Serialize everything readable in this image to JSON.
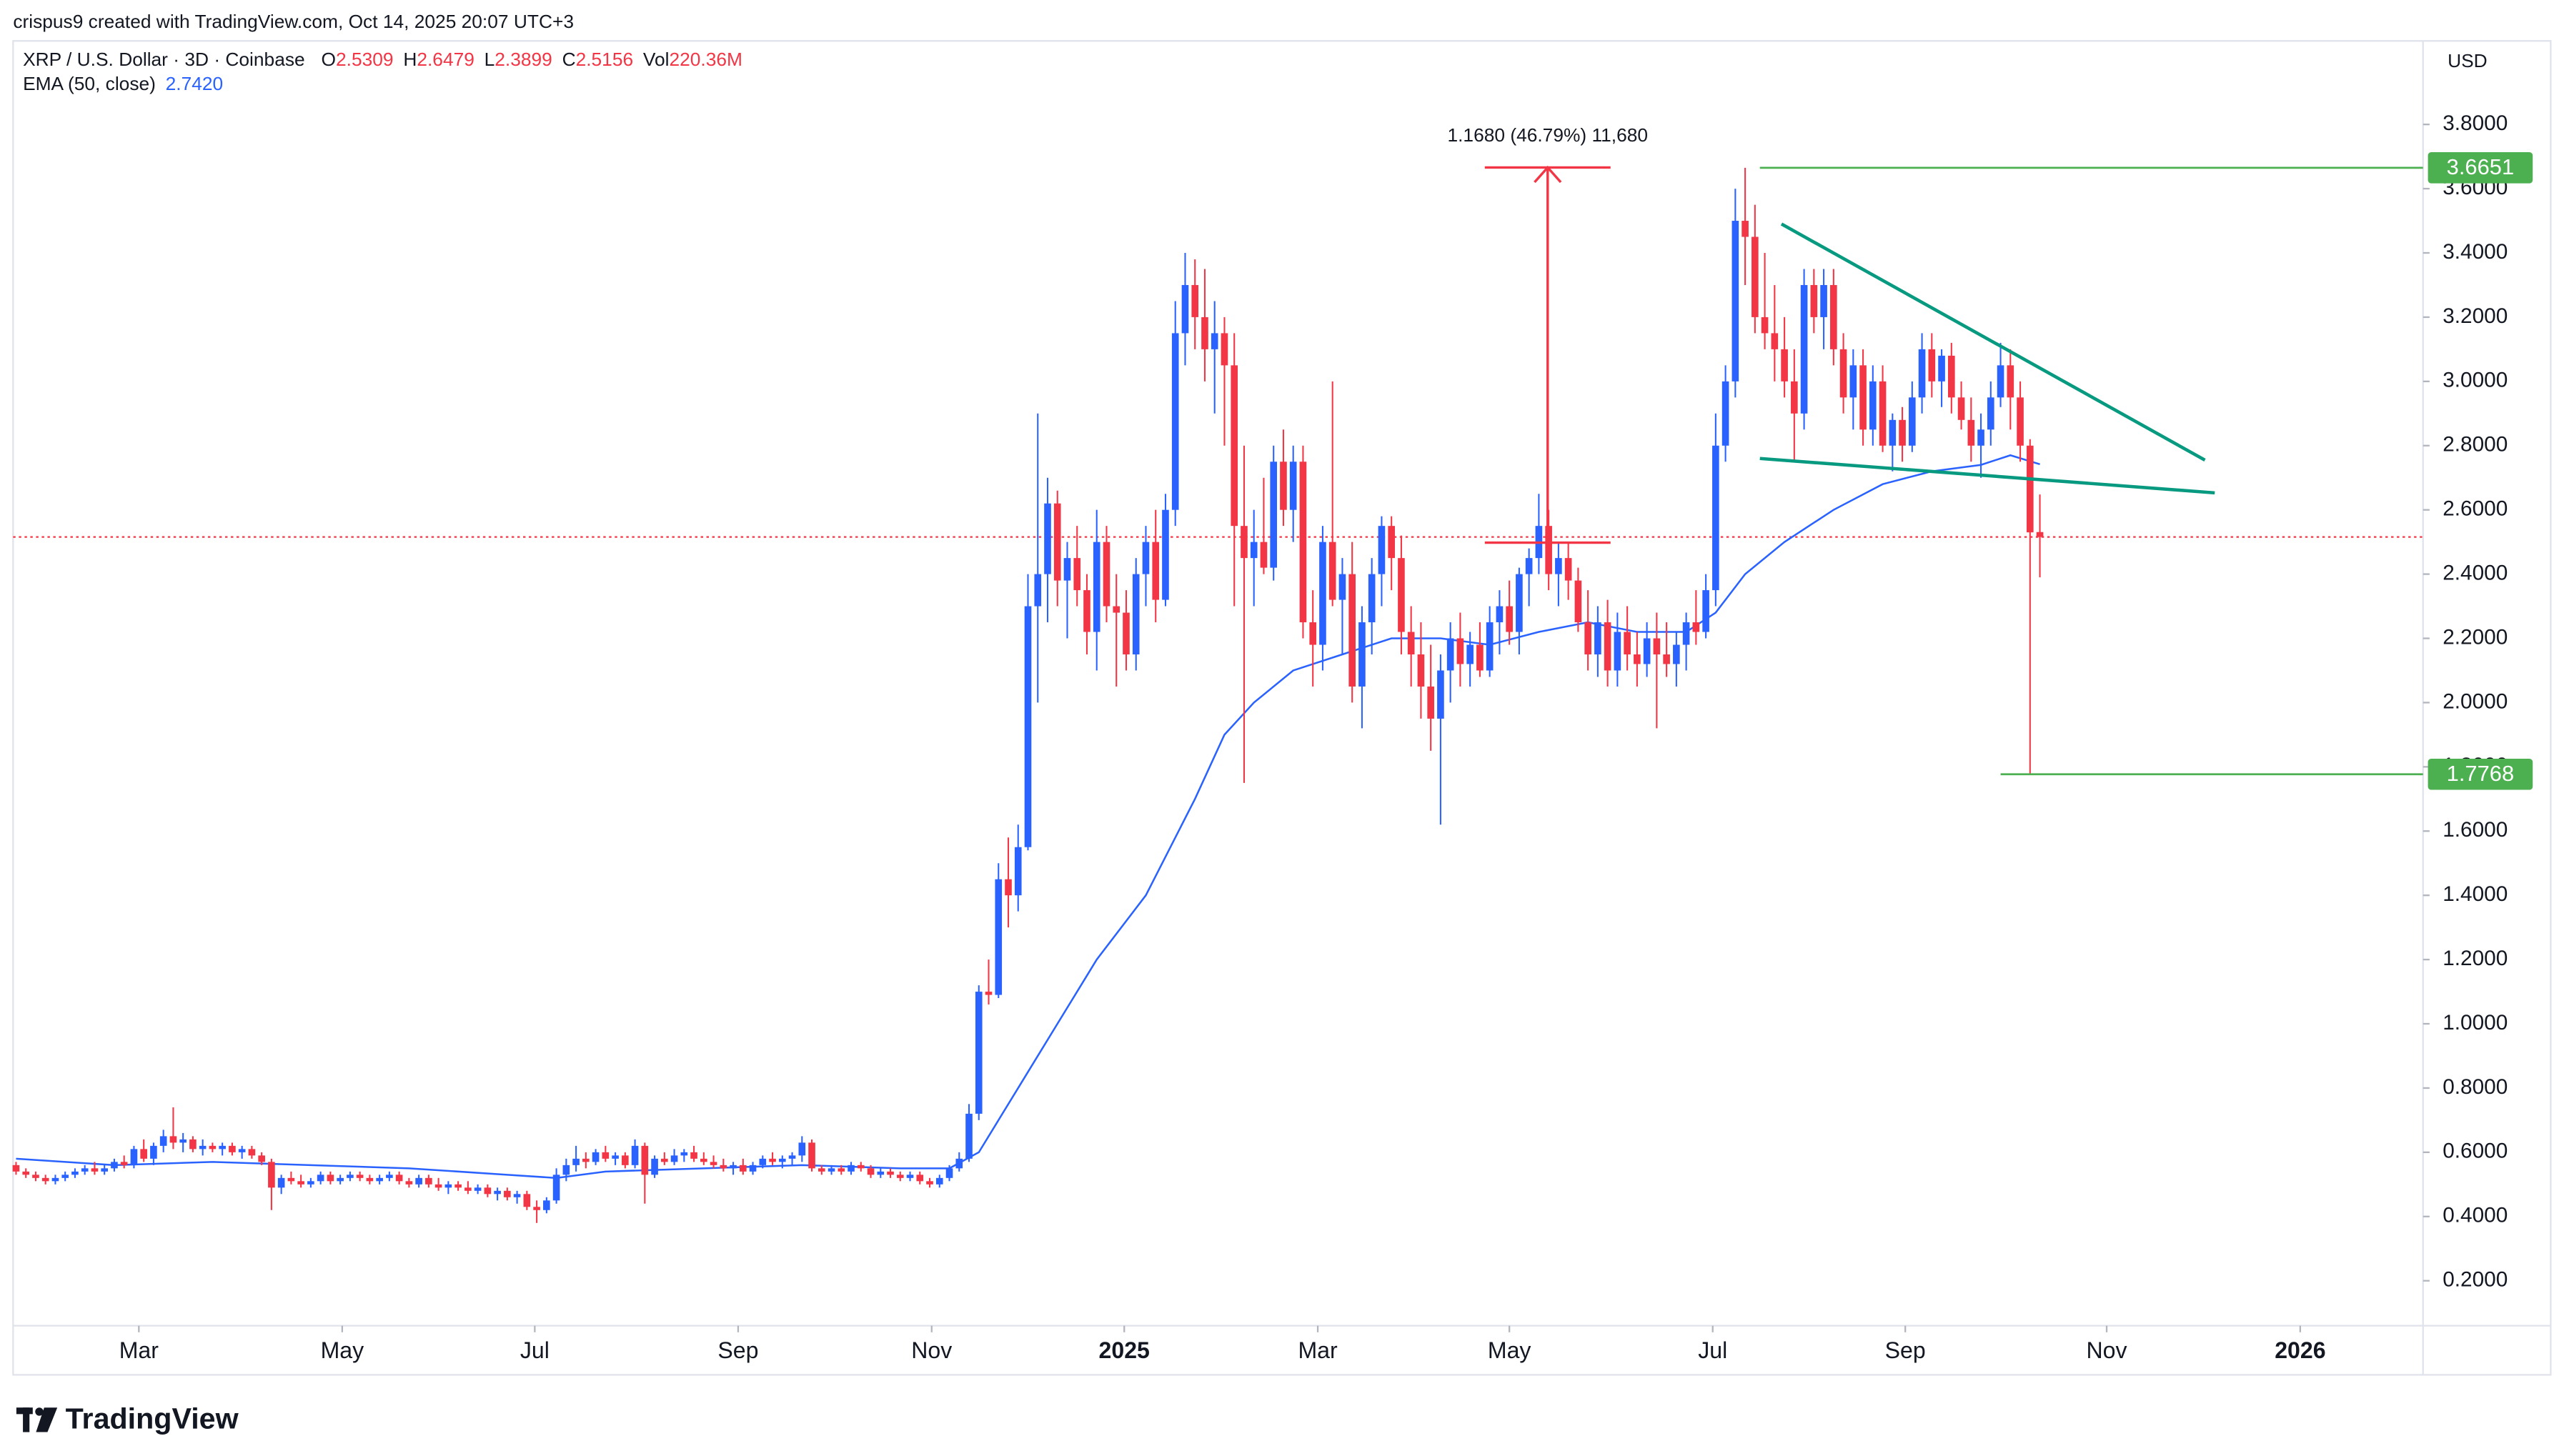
{
  "header": {
    "credit": "crispus9 created with TradingView.com, Oct 14, 2025 20:07 UTC+3",
    "logo": "TradingView"
  },
  "chart_data": {
    "type": "candlestick",
    "title": "XRP / U.S. Dollar · 3D · Coinbase",
    "ohlc_legend": [
      {
        "label": "O",
        "value": "2.5309"
      },
      {
        "label": "H",
        "value": "2.6479"
      },
      {
        "label": "L",
        "value": "2.3899"
      },
      {
        "label": "C",
        "value": "2.5156"
      },
      {
        "label": "Vol",
        "value": "220.36M"
      }
    ],
    "currency": "USD",
    "up_color": "#2962ff",
    "down_color": "#f23645",
    "xlim": [
      -0.3,
      245
    ],
    "xticks": [
      {
        "value": 12.5,
        "label": "Mar"
      },
      {
        "value": 33.2,
        "label": "May"
      },
      {
        "value": 52.8,
        "label": "Jul"
      },
      {
        "value": 73.5,
        "label": "Sep"
      },
      {
        "value": 93.2,
        "label": "Nov"
      },
      {
        "value": 112.8,
        "label": "2025"
      },
      {
        "value": 132.5,
        "label": "Mar"
      },
      {
        "value": 152,
        "label": "May"
      },
      {
        "value": 172.7,
        "label": "Jul"
      },
      {
        "value": 192.3,
        "label": "Sep"
      },
      {
        "value": 212.8,
        "label": "Nov"
      },
      {
        "value": 232.5,
        "label": "2026"
      }
    ],
    "ylim": [
      0.06,
      4.06
    ],
    "yticks": [
      {
        "value": 0.2,
        "label": "0.2000"
      },
      {
        "value": 0.4,
        "label": "0.4000"
      },
      {
        "value": 0.6,
        "label": "0.6000"
      },
      {
        "value": 0.8,
        "label": "0.8000"
      },
      {
        "value": 1.0,
        "label": "1.0000"
      },
      {
        "value": 1.2,
        "label": "1.2000"
      },
      {
        "value": 1.4,
        "label": "1.4000"
      },
      {
        "value": 1.6,
        "label": "1.6000"
      },
      {
        "value": 1.8,
        "label": "1.8000"
      },
      {
        "value": 2.0,
        "label": "2.0000"
      },
      {
        "value": 2.2,
        "label": "2.2000"
      },
      {
        "value": 2.4,
        "label": "2.4000"
      },
      {
        "value": 2.6,
        "label": "2.6000"
      },
      {
        "value": 2.8,
        "label": "2.8000"
      },
      {
        "value": 3.0,
        "label": "3.0000"
      },
      {
        "value": 3.2,
        "label": "3.2000"
      },
      {
        "value": 3.4,
        "label": "3.4000"
      },
      {
        "value": 3.6,
        "label": "3.6000"
      },
      {
        "value": 3.8,
        "label": "3.8000"
      }
    ],
    "grid": false,
    "ohlc": [
      [
        0.56,
        0.57,
        0.53,
        0.54
      ],
      [
        0.54,
        0.55,
        0.52,
        0.53
      ],
      [
        0.53,
        0.54,
        0.51,
        0.52
      ],
      [
        0.52,
        0.53,
        0.5,
        0.51
      ],
      [
        0.51,
        0.53,
        0.5,
        0.52
      ],
      [
        0.52,
        0.54,
        0.51,
        0.53
      ],
      [
        0.53,
        0.55,
        0.52,
        0.54
      ],
      [
        0.54,
        0.56,
        0.53,
        0.55
      ],
      [
        0.55,
        0.57,
        0.53,
        0.54
      ],
      [
        0.54,
        0.56,
        0.53,
        0.55
      ],
      [
        0.55,
        0.58,
        0.54,
        0.57
      ],
      [
        0.57,
        0.59,
        0.55,
        0.56
      ],
      [
        0.56,
        0.62,
        0.55,
        0.61
      ],
      [
        0.61,
        0.64,
        0.57,
        0.58
      ],
      [
        0.58,
        0.63,
        0.56,
        0.62
      ],
      [
        0.62,
        0.67,
        0.6,
        0.65
      ],
      [
        0.65,
        0.74,
        0.61,
        0.63
      ],
      [
        0.63,
        0.66,
        0.6,
        0.64
      ],
      [
        0.64,
        0.65,
        0.6,
        0.61
      ],
      [
        0.61,
        0.64,
        0.59,
        0.62
      ],
      [
        0.62,
        0.63,
        0.6,
        0.61
      ],
      [
        0.61,
        0.63,
        0.59,
        0.62
      ],
      [
        0.62,
        0.63,
        0.59,
        0.6
      ],
      [
        0.6,
        0.62,
        0.58,
        0.61
      ],
      [
        0.61,
        0.62,
        0.58,
        0.59
      ],
      [
        0.59,
        0.6,
        0.56,
        0.57
      ],
      [
        0.57,
        0.58,
        0.42,
        0.49
      ],
      [
        0.49,
        0.53,
        0.47,
        0.52
      ],
      [
        0.52,
        0.54,
        0.5,
        0.51
      ],
      [
        0.51,
        0.53,
        0.49,
        0.5
      ],
      [
        0.5,
        0.52,
        0.49,
        0.51
      ],
      [
        0.51,
        0.54,
        0.5,
        0.53
      ],
      [
        0.53,
        0.54,
        0.5,
        0.51
      ],
      [
        0.51,
        0.53,
        0.5,
        0.52
      ],
      [
        0.52,
        0.54,
        0.51,
        0.53
      ],
      [
        0.53,
        0.54,
        0.51,
        0.52
      ],
      [
        0.52,
        0.53,
        0.5,
        0.51
      ],
      [
        0.51,
        0.53,
        0.5,
        0.52
      ],
      [
        0.52,
        0.54,
        0.51,
        0.53
      ],
      [
        0.53,
        0.54,
        0.5,
        0.51
      ],
      [
        0.51,
        0.52,
        0.49,
        0.5
      ],
      [
        0.5,
        0.53,
        0.49,
        0.52
      ],
      [
        0.52,
        0.53,
        0.49,
        0.5
      ],
      [
        0.5,
        0.52,
        0.48,
        0.49
      ],
      [
        0.49,
        0.51,
        0.47,
        0.5
      ],
      [
        0.5,
        0.51,
        0.48,
        0.49
      ],
      [
        0.49,
        0.51,
        0.47,
        0.48
      ],
      [
        0.48,
        0.5,
        0.47,
        0.49
      ],
      [
        0.49,
        0.5,
        0.46,
        0.47
      ],
      [
        0.47,
        0.49,
        0.45,
        0.48
      ],
      [
        0.48,
        0.49,
        0.45,
        0.46
      ],
      [
        0.46,
        0.48,
        0.44,
        0.47
      ],
      [
        0.47,
        0.48,
        0.42,
        0.43
      ],
      [
        0.43,
        0.45,
        0.38,
        0.42
      ],
      [
        0.42,
        0.46,
        0.41,
        0.45
      ],
      [
        0.45,
        0.55,
        0.44,
        0.53
      ],
      [
        0.53,
        0.58,
        0.51,
        0.56
      ],
      [
        0.56,
        0.62,
        0.54,
        0.58
      ],
      [
        0.58,
        0.6,
        0.55,
        0.57
      ],
      [
        0.57,
        0.61,
        0.56,
        0.6
      ],
      [
        0.6,
        0.62,
        0.57,
        0.58
      ],
      [
        0.58,
        0.6,
        0.56,
        0.59
      ],
      [
        0.59,
        0.6,
        0.55,
        0.56
      ],
      [
        0.56,
        0.64,
        0.55,
        0.62
      ],
      [
        0.62,
        0.63,
        0.44,
        0.53
      ],
      [
        0.53,
        0.59,
        0.52,
        0.58
      ],
      [
        0.58,
        0.6,
        0.56,
        0.57
      ],
      [
        0.57,
        0.61,
        0.56,
        0.59
      ],
      [
        0.59,
        0.61,
        0.57,
        0.6
      ],
      [
        0.6,
        0.62,
        0.57,
        0.58
      ],
      [
        0.58,
        0.6,
        0.56,
        0.57
      ],
      [
        0.57,
        0.59,
        0.55,
        0.56
      ],
      [
        0.56,
        0.58,
        0.54,
        0.55
      ],
      [
        0.55,
        0.57,
        0.53,
        0.56
      ],
      [
        0.56,
        0.58,
        0.53,
        0.54
      ],
      [
        0.54,
        0.57,
        0.53,
        0.56
      ],
      [
        0.56,
        0.59,
        0.55,
        0.58
      ],
      [
        0.58,
        0.6,
        0.56,
        0.57
      ],
      [
        0.57,
        0.59,
        0.55,
        0.58
      ],
      [
        0.58,
        0.6,
        0.56,
        0.59
      ],
      [
        0.59,
        0.65,
        0.57,
        0.63
      ],
      [
        0.63,
        0.64,
        0.54,
        0.55
      ],
      [
        0.55,
        0.56,
        0.53,
        0.54
      ],
      [
        0.54,
        0.56,
        0.53,
        0.55
      ],
      [
        0.55,
        0.56,
        0.53,
        0.54
      ],
      [
        0.54,
        0.57,
        0.53,
        0.56
      ],
      [
        0.56,
        0.57,
        0.54,
        0.55
      ],
      [
        0.55,
        0.56,
        0.52,
        0.53
      ],
      [
        0.53,
        0.55,
        0.52,
        0.54
      ],
      [
        0.54,
        0.55,
        0.52,
        0.53
      ],
      [
        0.53,
        0.54,
        0.51,
        0.52
      ],
      [
        0.52,
        0.54,
        0.51,
        0.53
      ],
      [
        0.53,
        0.54,
        0.5,
        0.51
      ],
      [
        0.51,
        0.52,
        0.49,
        0.5
      ],
      [
        0.5,
        0.53,
        0.49,
        0.52
      ],
      [
        0.52,
        0.56,
        0.51,
        0.55
      ],
      [
        0.55,
        0.6,
        0.54,
        0.58
      ],
      [
        0.58,
        0.75,
        0.57,
        0.72
      ],
      [
        0.72,
        1.12,
        0.7,
        1.1
      ],
      [
        1.1,
        1.2,
        1.06,
        1.09
      ],
      [
        1.09,
        1.5,
        1.08,
        1.45
      ],
      [
        1.45,
        1.58,
        1.3,
        1.4
      ],
      [
        1.4,
        1.62,
        1.35,
        1.55
      ],
      [
        1.55,
        2.4,
        1.54,
        2.3
      ],
      [
        2.3,
        2.9,
        2.0,
        2.4
      ],
      [
        2.4,
        2.7,
        2.25,
        2.62
      ],
      [
        2.62,
        2.66,
        2.3,
        2.38
      ],
      [
        2.38,
        2.5,
        2.2,
        2.45
      ],
      [
        2.45,
        2.55,
        2.3,
        2.35
      ],
      [
        2.35,
        2.4,
        2.15,
        2.22
      ],
      [
        2.22,
        2.6,
        2.1,
        2.5
      ],
      [
        2.5,
        2.55,
        2.25,
        2.3
      ],
      [
        2.3,
        2.4,
        2.05,
        2.28
      ],
      [
        2.28,
        2.35,
        2.1,
        2.15
      ],
      [
        2.15,
        2.45,
        2.1,
        2.4
      ],
      [
        2.4,
        2.55,
        2.3,
        2.5
      ],
      [
        2.5,
        2.6,
        2.25,
        2.32
      ],
      [
        2.32,
        2.65,
        2.3,
        2.6
      ],
      [
        2.6,
        3.25,
        2.55,
        3.15
      ],
      [
        3.15,
        3.4,
        3.05,
        3.3
      ],
      [
        3.3,
        3.38,
        3.1,
        3.2
      ],
      [
        3.2,
        3.35,
        3.0,
        3.1
      ],
      [
        3.1,
        3.25,
        2.9,
        3.15
      ],
      [
        3.15,
        3.2,
        2.8,
        3.05
      ],
      [
        3.05,
        3.15,
        2.3,
        2.55
      ],
      [
        2.55,
        2.8,
        1.75,
        2.45
      ],
      [
        2.45,
        2.6,
        2.3,
        2.5
      ],
      [
        2.5,
        2.7,
        2.4,
        2.42
      ],
      [
        2.42,
        2.8,
        2.38,
        2.75
      ],
      [
        2.75,
        2.85,
        2.55,
        2.6
      ],
      [
        2.6,
        2.8,
        2.5,
        2.75
      ],
      [
        2.75,
        2.8,
        2.2,
        2.25
      ],
      [
        2.25,
        2.35,
        2.05,
        2.18
      ],
      [
        2.18,
        2.55,
        2.1,
        2.5
      ],
      [
        2.5,
        3.0,
        2.3,
        2.32
      ],
      [
        2.32,
        2.45,
        2.15,
        2.4
      ],
      [
        2.4,
        2.5,
        2.0,
        2.05
      ],
      [
        2.05,
        2.3,
        1.92,
        2.25
      ],
      [
        2.25,
        2.45,
        2.15,
        2.4
      ],
      [
        2.4,
        2.58,
        2.3,
        2.55
      ],
      [
        2.55,
        2.58,
        2.35,
        2.45
      ],
      [
        2.45,
        2.52,
        2.15,
        2.22
      ],
      [
        2.22,
        2.3,
        2.05,
        2.15
      ],
      [
        2.15,
        2.25,
        1.95,
        2.05
      ],
      [
        2.05,
        2.18,
        1.85,
        1.95
      ],
      [
        1.95,
        2.15,
        1.62,
        2.1
      ],
      [
        2.1,
        2.25,
        2.0,
        2.2
      ],
      [
        2.2,
        2.28,
        2.05,
        2.12
      ],
      [
        2.12,
        2.22,
        2.05,
        2.18
      ],
      [
        2.18,
        2.25,
        2.08,
        2.1
      ],
      [
        2.1,
        2.3,
        2.08,
        2.25
      ],
      [
        2.25,
        2.35,
        2.15,
        2.3
      ],
      [
        2.3,
        2.38,
        2.18,
        2.22
      ],
      [
        2.22,
        2.42,
        2.15,
        2.4
      ],
      [
        2.4,
        2.48,
        2.3,
        2.45
      ],
      [
        2.45,
        2.65,
        2.4,
        2.55
      ],
      [
        2.55,
        2.6,
        2.35,
        2.4
      ],
      [
        2.4,
        2.5,
        2.3,
        2.45
      ],
      [
        2.45,
        2.5,
        2.32,
        2.38
      ],
      [
        2.38,
        2.42,
        2.22,
        2.25
      ],
      [
        2.25,
        2.35,
        2.1,
        2.15
      ],
      [
        2.15,
        2.3,
        2.08,
        2.25
      ],
      [
        2.25,
        2.32,
        2.05,
        2.1
      ],
      [
        2.1,
        2.28,
        2.05,
        2.22
      ],
      [
        2.22,
        2.3,
        2.1,
        2.15
      ],
      [
        2.15,
        2.22,
        2.05,
        2.12
      ],
      [
        2.12,
        2.25,
        2.08,
        2.2
      ],
      [
        2.2,
        2.28,
        1.92,
        2.15
      ],
      [
        2.15,
        2.25,
        2.08,
        2.12
      ],
      [
        2.12,
        2.22,
        2.05,
        2.18
      ],
      [
        2.18,
        2.28,
        2.1,
        2.25
      ],
      [
        2.25,
        2.35,
        2.18,
        2.22
      ],
      [
        2.22,
        2.4,
        2.2,
        2.35
      ],
      [
        2.35,
        2.9,
        2.3,
        2.8
      ],
      [
        2.8,
        3.05,
        2.75,
        3.0
      ],
      [
        3.0,
        3.6,
        2.95,
        3.5
      ],
      [
        3.5,
        3.6651,
        3.3,
        3.45
      ],
      [
        3.45,
        3.55,
        3.15,
        3.2
      ],
      [
        3.2,
        3.4,
        3.1,
        3.15
      ],
      [
        3.15,
        3.3,
        3.0,
        3.1
      ],
      [
        3.1,
        3.2,
        2.95,
        3.0
      ],
      [
        3.0,
        3.1,
        2.75,
        2.9
      ],
      [
        2.9,
        3.35,
        2.85,
        3.3
      ],
      [
        3.3,
        3.35,
        3.15,
        3.2
      ],
      [
        3.2,
        3.35,
        3.1,
        3.3
      ],
      [
        3.3,
        3.35,
        3.05,
        3.1
      ],
      [
        3.1,
        3.15,
        2.9,
        2.95
      ],
      [
        2.95,
        3.1,
        2.85,
        3.05
      ],
      [
        3.05,
        3.1,
        2.8,
        2.85
      ],
      [
        2.85,
        3.05,
        2.8,
        3.0
      ],
      [
        3.0,
        3.05,
        2.78,
        2.8
      ],
      [
        2.8,
        2.9,
        2.72,
        2.88
      ],
      [
        2.88,
        2.92,
        2.75,
        2.8
      ],
      [
        2.8,
        3.0,
        2.78,
        2.95
      ],
      [
        2.95,
        3.15,
        2.9,
        3.1
      ],
      [
        3.1,
        3.15,
        2.95,
        3.0
      ],
      [
        3.0,
        3.1,
        2.92,
        3.08
      ],
      [
        3.08,
        3.12,
        2.9,
        2.95
      ],
      [
        2.95,
        3.0,
        2.85,
        2.88
      ],
      [
        2.88,
        2.95,
        2.75,
        2.8
      ],
      [
        2.8,
        2.9,
        2.7,
        2.85
      ],
      [
        2.85,
        3.0,
        2.8,
        2.95
      ],
      [
        2.95,
        3.12,
        2.92,
        3.05
      ],
      [
        3.05,
        3.1,
        2.85,
        2.95
      ],
      [
        2.95,
        3.0,
        2.75,
        2.8
      ],
      [
        2.8,
        2.82,
        1.7768,
        2.53
      ],
      [
        2.5309,
        2.6479,
        2.3899,
        2.5156
      ]
    ],
    "indicator": {
      "name": "EMA (50, close)",
      "value": "2.7420",
      "color": "#2962ff",
      "x": [
        0,
        10,
        20,
        30,
        40,
        50,
        55,
        60,
        70,
        80,
        90,
        95,
        98,
        100,
        103,
        106,
        110,
        115,
        120,
        123,
        126,
        130,
        135,
        140,
        145,
        150,
        155,
        160,
        165,
        170,
        173,
        176,
        180,
        185,
        190,
        195,
        200,
        203,
        206
      ],
      "values": [
        0.58,
        0.56,
        0.57,
        0.56,
        0.55,
        0.53,
        0.52,
        0.54,
        0.55,
        0.56,
        0.55,
        0.55,
        0.6,
        0.7,
        0.85,
        1.0,
        1.2,
        1.4,
        1.7,
        1.9,
        2.0,
        2.1,
        2.15,
        2.2,
        2.2,
        2.18,
        2.22,
        2.25,
        2.22,
        2.22,
        2.28,
        2.4,
        2.5,
        2.6,
        2.68,
        2.72,
        2.74,
        2.77,
        2.742
      ]
    },
    "levels": [
      {
        "value": 3.6651,
        "from": 177.5
      },
      {
        "value": 1.7768,
        "from": 202
      }
    ],
    "level_color": "#4caf50",
    "trendlines": [
      {
        "x": [
          179.7,
          222.8
        ],
        "y": [
          3.49,
          2.755
        ]
      },
      {
        "x": [
          177.5,
          223.8
        ],
        "y": [
          2.76,
          2.653
        ]
      }
    ],
    "trend_color": "#089981",
    "measure": {
      "label": "1.1680 (46.79%) 11,680",
      "x": [
        149.5,
        162.3
      ],
      "from": 2.498,
      "to": 3.666,
      "color": "#f23645"
    }
  }
}
